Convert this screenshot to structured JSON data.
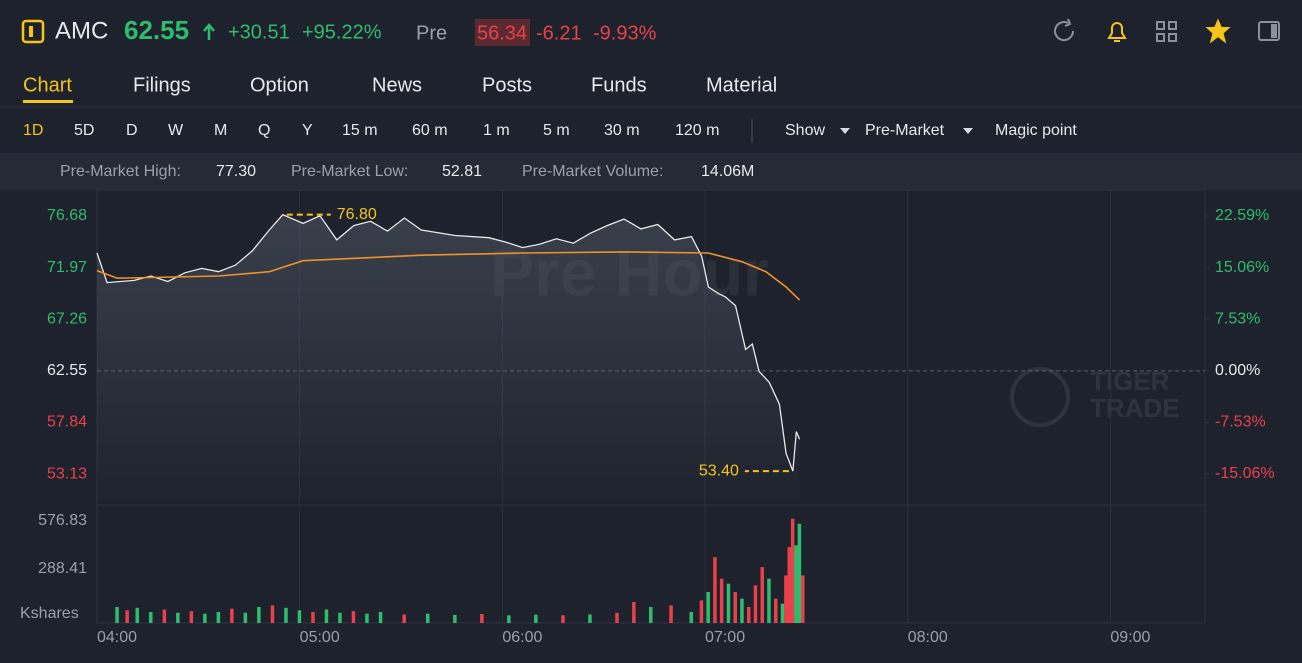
{
  "header": {
    "symbol": "AMC",
    "price": 62.55,
    "change": "+30.51",
    "change_pct": "+95.22%",
    "session": "Pre",
    "pre_price": "56.34",
    "pre_change": "-6.21",
    "pre_change_pct": "-9.93%"
  },
  "tabs": [
    "Chart",
    "Filings",
    "Option",
    "News",
    "Posts",
    "Funds",
    "Material"
  ],
  "timeframes": [
    "1D",
    "5D",
    "D",
    "W",
    "M",
    "Q",
    "Y",
    "15 m",
    "60 m",
    "1 m",
    "5 m",
    "30 m",
    "120 m"
  ],
  "menus": [
    "Show",
    "Pre-Market"
  ],
  "magic": "Magic point",
  "stats": [
    {
      "label": "Pre-Market High:",
      "value": "77.30"
    },
    {
      "label": "Pre-Market Low:",
      "value": "52.81"
    },
    {
      "label": "Pre-Market Volume:",
      "value": "14.06M"
    }
  ],
  "chart_data": {
    "type": "line",
    "watermark": "Pre Hour",
    "brand": [
      "TIGER",
      "TRADE"
    ],
    "xlim": [
      "04:00",
      "09:28"
    ],
    "xticks": [
      "04:00",
      "05:00",
      "06:00",
      "07:00",
      "08:00",
      "09:00"
    ],
    "ylim": [
      50.76,
      78.87
    ],
    "yticks": [
      76.68,
      71.97,
      67.26,
      62.55,
      57.84,
      53.13
    ],
    "y2lim": [
      -18.85,
      26.09
    ],
    "y2ticks": [
      {
        "value": 22.59,
        "label": "22.59%"
      },
      {
        "value": 15.06,
        "label": "15.06%"
      },
      {
        "value": 7.53,
        "label": "7.53%"
      },
      {
        "value": 0,
        "label": "0.00%"
      },
      {
        "value": -7.53,
        "label": "-7.53%"
      },
      {
        "value": -15.06,
        "label": "-15.06%"
      }
    ],
    "series": [
      {
        "color": "#e8e8e8",
        "x": [
          "04:00",
          "04:03",
          "04:11",
          "04:16",
          "04:21",
          "04:26",
          "04:31",
          "04:36",
          "04:41",
          "04:46",
          "04:51",
          "04:55",
          "05:01",
          "05:06",
          "05:11",
          "05:16",
          "05:21",
          "05:26",
          "05:31",
          "05:36",
          "05:46",
          "05:56",
          "06:01",
          "06:06",
          "06:11",
          "06:16",
          "06:21",
          "06:26",
          "06:31",
          "06:36",
          "06:41",
          "06:46",
          "06:51",
          "06:56",
          "06:59",
          "07:01",
          "07:04",
          "07:06",
          "07:09",
          "07:12",
          "07:14",
          "07:16",
          "07:19",
          "07:22",
          "07:24",
          "07:26",
          "07:27",
          "07:28"
        ],
        "values": [
          73.3,
          70.6,
          70.8,
          71.2,
          70.7,
          71.5,
          71.9,
          71.6,
          72.2,
          73.5,
          75.4,
          76.8,
          76.0,
          76.7,
          74.5,
          75.8,
          76.2,
          75.3,
          76.5,
          75.4,
          74.9,
          74.7,
          74.3,
          73.8,
          74.1,
          74.6,
          74.2,
          75.1,
          75.8,
          76.4,
          75.5,
          75.9,
          74.5,
          74.8,
          73.0,
          70.2,
          69.6,
          69.3,
          68.5,
          64.5,
          65.0,
          62.5,
          61.5,
          59.5,
          55.0,
          53.4,
          57.0,
          56.3
        ]
      },
      {
        "color": "#f0902a",
        "x": [
          "04:00",
          "04:06",
          "04:36",
          "04:51",
          "05:01",
          "05:36",
          "06:06",
          "06:36",
          "07:01",
          "07:11",
          "07:18",
          "07:24",
          "07:28"
        ],
        "values": [
          71.7,
          71.0,
          71.2,
          71.6,
          72.6,
          73.1,
          73.3,
          73.4,
          73.3,
          72.5,
          71.6,
          70.2,
          69.0
        ]
      }
    ],
    "annotations": [
      {
        "text": "76.80",
        "x": "04:55",
        "value": 76.8,
        "side": "right"
      },
      {
        "text": "53.40",
        "x": "07:26",
        "value": 53.4,
        "side": "left"
      }
    ],
    "volume": {
      "unit": "Kshares",
      "ylim": [
        0,
        673
      ],
      "yticks": [
        576.83,
        288.41
      ],
      "up_color": "#2ebd6e",
      "down_color": "#e8414b",
      "x": [
        "04:06",
        "04:09",
        "04:12",
        "04:16",
        "04:20",
        "04:24",
        "04:28",
        "04:32",
        "04:36",
        "04:40",
        "04:44",
        "04:48",
        "04:52",
        "04:56",
        "05:00",
        "05:04",
        "05:08",
        "05:12",
        "05:16",
        "05:20",
        "05:24",
        "05:31",
        "05:38",
        "05:46",
        "05:54",
        "06:02",
        "06:10",
        "06:18",
        "06:26",
        "06:34",
        "06:39",
        "06:44",
        "06:50",
        "06:56",
        "06:59",
        "07:01",
        "07:03",
        "07:05",
        "07:07",
        "07:09",
        "07:11",
        "07:13",
        "07:15",
        "07:17",
        "07:19",
        "07:21",
        "07:23",
        "07:24",
        "07:25",
        "07:26",
        "07:27",
        "07:28",
        "07:29"
      ],
      "values": [
        60,
        40,
        55,
        30,
        45,
        25,
        35,
        20,
        30,
        50,
        25,
        60,
        70,
        55,
        40,
        30,
        45,
        25,
        35,
        20,
        30,
        15,
        20,
        12,
        18,
        10,
        14,
        10,
        15,
        25,
        90,
        60,
        70,
        30,
        100,
        150,
        360,
        230,
        200,
        150,
        110,
        60,
        190,
        300,
        230,
        110,
        80,
        250,
        420,
        590,
        430,
        560,
        250
      ],
      "up": [
        true,
        false,
        true,
        true,
        false,
        true,
        false,
        true,
        true,
        false,
        true,
        true,
        false,
        true,
        true,
        false,
        true,
        true,
        false,
        true,
        true,
        false,
        true,
        true,
        false,
        true,
        true,
        false,
        true,
        false,
        false,
        true,
        false,
        true,
        false,
        true,
        false,
        false,
        true,
        false,
        true,
        false,
        false,
        false,
        true,
        false,
        true,
        false,
        false,
        false,
        true,
        true,
        false
      ]
    }
  }
}
